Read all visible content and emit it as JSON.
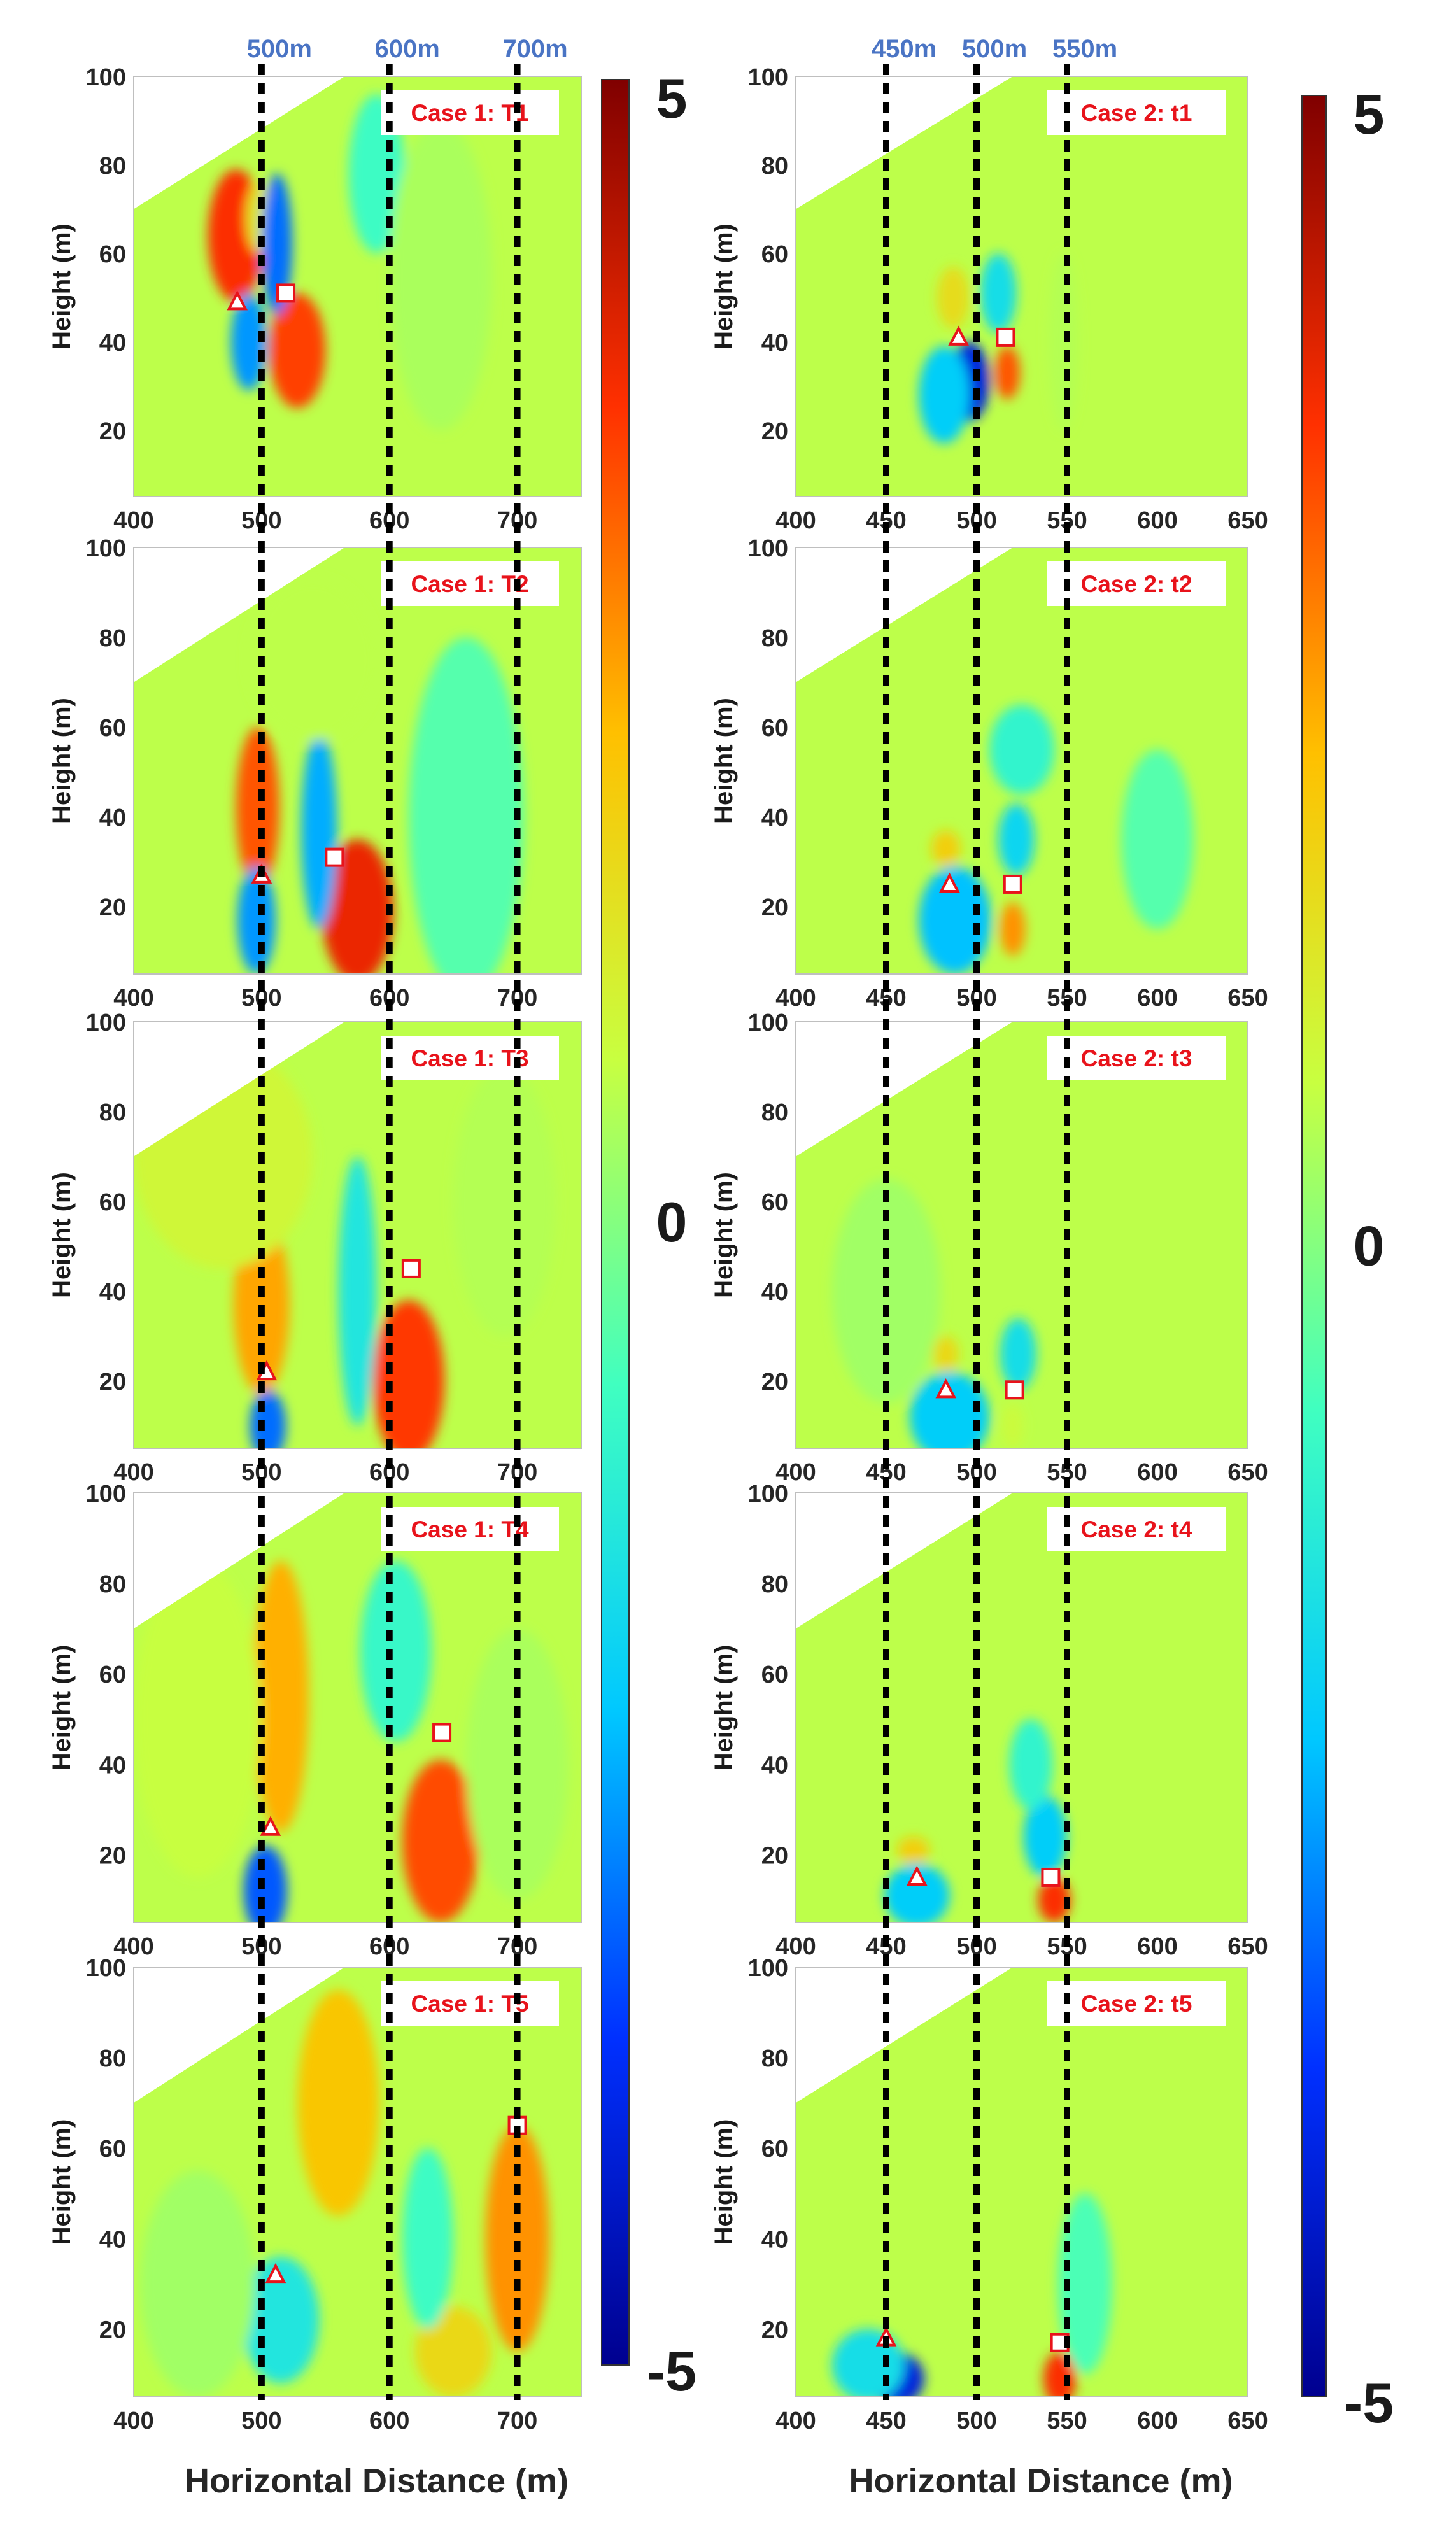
{
  "figure": {
    "x_label": "Horizontal Distance (m)",
    "y_label": "Height (m)"
  },
  "colorbar": {
    "min_label": "-5",
    "mid_label": "0",
    "max_label": "5",
    "range": [
      -5,
      5
    ],
    "colors": [
      "#00008f",
      "#0030ff",
      "#00c8ff",
      "#40ffc0",
      "#c8ff40",
      "#ffc000",
      "#ff3000",
      "#800000"
    ]
  },
  "chart_data": [
    {
      "type": "heatmap",
      "case": "Case 1",
      "xlabel": "Horizontal Distance (m)",
      "ylabel": "Height (m)",
      "xlim": [
        400,
        750
      ],
      "ylim": [
        5,
        100
      ],
      "xticks": [
        "400",
        "500",
        "600",
        "700"
      ],
      "yticks": [
        "20",
        "40",
        "60",
        "80",
        "100"
      ],
      "dashed_lines": [
        {
          "x": 500,
          "label": "500m"
        },
        {
          "x": 600,
          "label": "600m"
        },
        {
          "x": 700,
          "label": "700m"
        }
      ],
      "terrain_edge": [
        [
          400,
          70
        ],
        [
          565,
          100
        ]
      ],
      "panels": [
        {
          "title": "Case 1: T1",
          "triangle": [
            481,
            49
          ],
          "square": [
            519,
            51
          ],
          "blobs": [
            {
              "x": 480,
              "y": 64,
              "rx": 22,
              "ry": 15,
              "v": 3.6
            },
            {
              "x": 498,
              "y": 68,
              "rx": 10,
              "ry": 8,
              "v": 1.2
            },
            {
              "x": 528,
              "y": 38,
              "rx": 22,
              "ry": 13,
              "v": 3.4
            },
            {
              "x": 512,
              "y": 62,
              "rx": 12,
              "ry": 16,
              "v": -3.0
            },
            {
              "x": 490,
              "y": 40,
              "rx": 14,
              "ry": 11,
              "v": -2.6
            },
            {
              "x": 590,
              "y": 78,
              "rx": 22,
              "ry": 18,
              "v": -0.8
            },
            {
              "x": 640,
              "y": 55,
              "rx": 40,
              "ry": 35,
              "v": 0.4
            }
          ]
        },
        {
          "title": "Case 1: T2",
          "triangle": [
            500,
            27
          ],
          "square": [
            557,
            31
          ],
          "blobs": [
            {
              "x": 497,
              "y": 42,
              "rx": 17,
              "ry": 18,
              "v": 3.2
            },
            {
              "x": 496,
              "y": 17,
              "rx": 15,
              "ry": 12,
              "v": -2.6
            },
            {
              "x": 575,
              "y": 19,
              "rx": 28,
              "ry": 16,
              "v": 3.8
            },
            {
              "x": 545,
              "y": 37,
              "rx": 14,
              "ry": 22,
              "v": -2.4
            },
            {
              "x": 540,
              "y": 75,
              "rx": 50,
              "ry": 18,
              "v": 0.6
            },
            {
              "x": 660,
              "y": 40,
              "rx": 45,
              "ry": 40,
              "v": -0.5
            }
          ]
        },
        {
          "title": "Case 1: T3",
          "triangle": [
            504,
            22
          ],
          "square": [
            617,
            45
          ],
          "blobs": [
            {
              "x": 500,
              "y": 37,
              "rx": 22,
              "ry": 20,
              "v": 2.4
            },
            {
              "x": 505,
              "y": 10,
              "rx": 14,
              "ry": 8,
              "v": -3.0
            },
            {
              "x": 615,
              "y": 20,
              "rx": 28,
              "ry": 18,
              "v": 3.5
            },
            {
              "x": 575,
              "y": 40,
              "rx": 15,
              "ry": 30,
              "v": -1.4
            },
            {
              "x": 470,
              "y": 70,
              "rx": 70,
              "ry": 25,
              "v": 0.9
            },
            {
              "x": 690,
              "y": 60,
              "rx": 40,
              "ry": 30,
              "v": 0.5
            }
          ]
        },
        {
          "title": "Case 1: T4",
          "triangle": [
            507,
            26
          ],
          "square": [
            641,
            47
          ],
          "blobs": [
            {
              "x": 515,
              "y": 55,
              "rx": 22,
              "ry": 30,
              "v": 2.3
            },
            {
              "x": 503,
              "y": 12,
              "rx": 17,
              "ry": 10,
              "v": -3.2
            },
            {
              "x": 640,
              "y": 23,
              "rx": 30,
              "ry": 18,
              "v": 3.3
            },
            {
              "x": 605,
              "y": 65,
              "rx": 28,
              "ry": 20,
              "v": -0.9
            },
            {
              "x": 450,
              "y": 50,
              "rx": 50,
              "ry": 35,
              "v": 0.7
            },
            {
              "x": 700,
              "y": 40,
              "rx": 40,
              "ry": 30,
              "v": 0.4
            }
          ]
        },
        {
          "title": "Case 1: T5",
          "triangle": [
            511,
            32
          ],
          "square": [
            700,
            65
          ],
          "blobs": [
            {
              "x": 560,
              "y": 70,
              "rx": 32,
              "ry": 25,
              "v": 2.0
            },
            {
              "x": 515,
              "y": 22,
              "rx": 30,
              "ry": 14,
              "v": -1.4
            },
            {
              "x": 700,
              "y": 40,
              "rx": 25,
              "ry": 25,
              "v": 2.6
            },
            {
              "x": 650,
              "y": 15,
              "rx": 30,
              "ry": 10,
              "v": 1.6
            },
            {
              "x": 630,
              "y": 40,
              "rx": 20,
              "ry": 20,
              "v": -0.8
            },
            {
              "x": 450,
              "y": 30,
              "rx": 45,
              "ry": 25,
              "v": 0.3
            }
          ]
        }
      ]
    },
    {
      "type": "heatmap",
      "case": "Case 2",
      "xlabel": "Horizontal Distance (m)",
      "ylabel": "Height (m)",
      "xlim": [
        400,
        650
      ],
      "ylim": [
        5,
        100
      ],
      "xticks": [
        "400",
        "450",
        "500",
        "550",
        "600",
        "650"
      ],
      "yticks": [
        "20",
        "40",
        "60",
        "80",
        "100"
      ],
      "dashed_lines": [
        {
          "x": 450,
          "label": "450m"
        },
        {
          "x": 500,
          "label": "500m"
        },
        {
          "x": 550,
          "label": "550m"
        }
      ],
      "terrain_edge": [
        [
          400,
          70
        ],
        [
          520,
          100
        ]
      ],
      "panels": [
        {
          "title": "Case 2: t1",
          "triangle": [
            490,
            41
          ],
          "square": [
            516,
            41
          ],
          "blobs": [
            {
              "x": 496,
              "y": 31,
              "rx": 11,
              "ry": 9,
              "v": -4.0
            },
            {
              "x": 482,
              "y": 28,
              "rx": 14,
              "ry": 11,
              "v": -2.0
            },
            {
              "x": 517,
              "y": 33,
              "rx": 7,
              "ry": 6,
              "v": 3.2
            },
            {
              "x": 487,
              "y": 50,
              "rx": 9,
              "ry": 7,
              "v": 1.5
            },
            {
              "x": 512,
              "y": 51,
              "rx": 10,
              "ry": 9,
              "v": -1.6
            },
            {
              "x": 548,
              "y": 40,
              "rx": 8,
              "ry": 20,
              "v": 0.5
            }
          ]
        },
        {
          "title": "Case 2: t2",
          "triangle": [
            485,
            25
          ],
          "square": [
            520,
            25
          ],
          "blobs": [
            {
              "x": 488,
              "y": 17,
              "rx": 20,
              "ry": 12,
              "v": -2.2
            },
            {
              "x": 483,
              "y": 33,
              "rx": 8,
              "ry": 4,
              "v": 1.8
            },
            {
              "x": 520,
              "y": 15,
              "rx": 7,
              "ry": 6,
              "v": 2.6
            },
            {
              "x": 522,
              "y": 35,
              "rx": 10,
              "ry": 8,
              "v": -1.8
            },
            {
              "x": 525,
              "y": 55,
              "rx": 18,
              "ry": 10,
              "v": -1.0
            },
            {
              "x": 600,
              "y": 35,
              "rx": 20,
              "ry": 20,
              "v": -0.5
            }
          ]
        },
        {
          "title": "Case 2: t3",
          "triangle": [
            483,
            18
          ],
          "square": [
            521,
            18
          ],
          "blobs": [
            {
              "x": 485,
              "y": 12,
              "rx": 22,
              "ry": 10,
              "v": -2.0
            },
            {
              "x": 483,
              "y": 26,
              "rx": 7,
              "ry": 4,
              "v": 1.6
            },
            {
              "x": 523,
              "y": 26,
              "rx": 10,
              "ry": 8,
              "v": -1.6
            },
            {
              "x": 520,
              "y": 10,
              "rx": 6,
              "ry": 5,
              "v": 0.8
            },
            {
              "x": 450,
              "y": 40,
              "rx": 30,
              "ry": 25,
              "v": 0.3
            }
          ]
        },
        {
          "title": "Case 2: t4",
          "triangle": [
            467,
            15
          ],
          "square": [
            541,
            15
          ],
          "blobs": [
            {
              "x": 467,
              "y": 11,
              "rx": 18,
              "ry": 7,
              "v": -2.0
            },
            {
              "x": 465,
              "y": 21,
              "rx": 9,
              "ry": 3,
              "v": 1.8
            },
            {
              "x": 543,
              "y": 10,
              "rx": 9,
              "ry": 5,
              "v": 3.6
            },
            {
              "x": 538,
              "y": 24,
              "rx": 12,
              "ry": 9,
              "v": -2.0
            },
            {
              "x": 530,
              "y": 40,
              "rx": 12,
              "ry": 10,
              "v": -1.0
            }
          ]
        },
        {
          "title": "Case 2: t5",
          "triangle": [
            450,
            18
          ],
          "square": [
            546,
            17
          ],
          "blobs": [
            {
              "x": 455,
              "y": 9,
              "rx": 16,
              "ry": 6,
              "v": -4.0
            },
            {
              "x": 440,
              "y": 12,
              "rx": 20,
              "ry": 8,
              "v": -1.6
            },
            {
              "x": 546,
              "y": 9,
              "rx": 9,
              "ry": 6,
              "v": 3.6
            },
            {
              "x": 560,
              "y": 30,
              "rx": 15,
              "ry": 20,
              "v": -0.6
            }
          ]
        }
      ]
    }
  ]
}
